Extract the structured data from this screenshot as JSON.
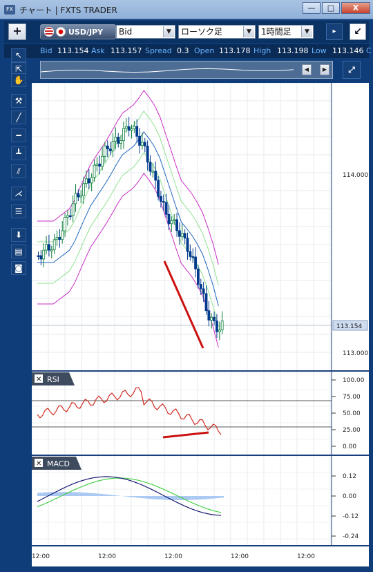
{
  "window": {
    "title": "チャート | FXTS TRADER",
    "app_icon": "FX",
    "min": "—",
    "max": "□",
    "close": "X"
  },
  "toolbar": {
    "add": "+",
    "pair": "USD/JPY",
    "price_type": "Bid",
    "chart_type": "ローソク足",
    "timeframe": "1時間足",
    "collapse": "↙"
  },
  "quote": {
    "bid_label": "Bid",
    "bid": "113.154",
    "ask_label": "Ask",
    "ask": "113.157",
    "spread_label": "Spread",
    "spread": "0.3",
    "open_label": "Open",
    "open": "113.178",
    "high_label": "High",
    "high": "113.198",
    "low_label": "Low",
    "low": "113.146",
    "close_label": "C"
  },
  "price_axis": {
    "upper": "114.000",
    "lower": "113.000",
    "current": "113.154"
  },
  "rsi": {
    "title": "RSI",
    "ticks": [
      "100.00",
      "75.00",
      "50.00",
      "25.00",
      "0.00"
    ]
  },
  "macd": {
    "title": "MACD",
    "ticks": [
      "0.12",
      "0.00",
      "-0.12",
      "-0.24"
    ]
  },
  "time_axis": [
    "12:00",
    "12:00",
    "12:00",
    "12:00",
    "12:00"
  ],
  "colors": {
    "bg": "#0f3d7a",
    "candle_up": "#0a7d3a",
    "candle_dn": "#003a8c",
    "bb_outer": "#c92bc4",
    "bb_inner": "#8fe28f",
    "bb_mid": "#1e66c0",
    "trend": "#cc1111",
    "rsi_line": "#d02a20",
    "macd_line": "#16166e",
    "signal_line": "#46d046",
    "hist": "#a9c8f2"
  }
}
